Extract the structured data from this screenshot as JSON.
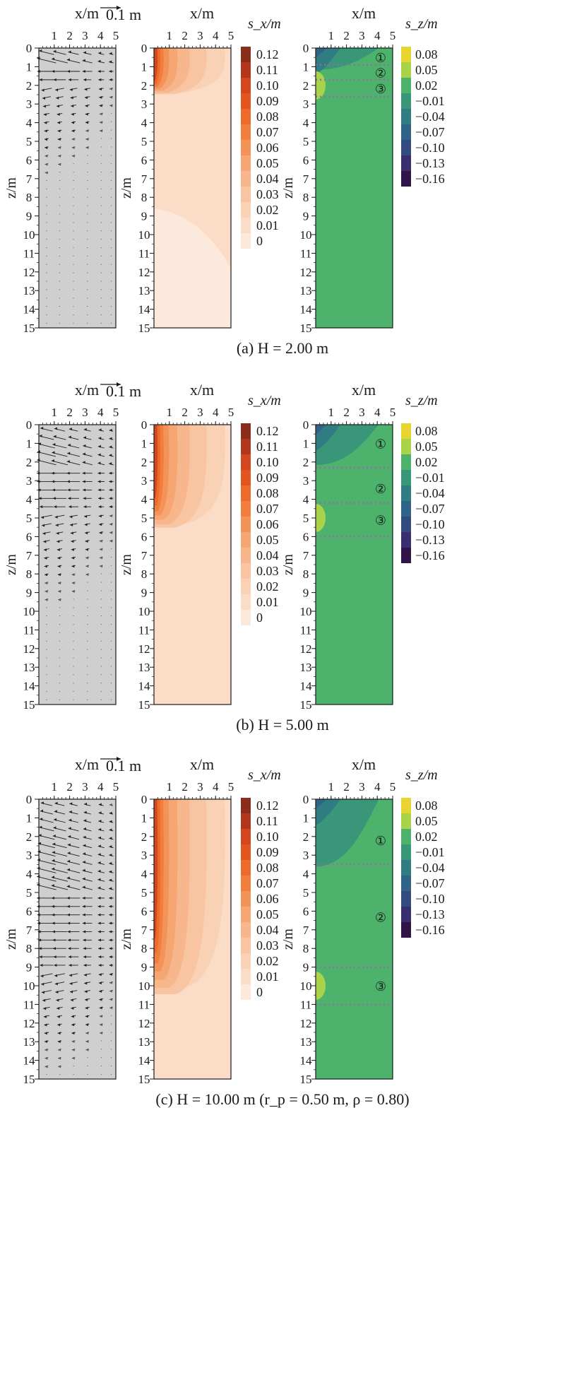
{
  "common": {
    "x_ticks": [
      1,
      2,
      3,
      4,
      5
    ],
    "z_ticks": [
      0,
      1,
      2,
      3,
      4,
      5,
      6,
      7,
      8,
      9,
      10,
      11,
      12,
      13,
      14,
      15
    ],
    "x_label": "x/m",
    "z_label": "z/m",
    "vector_scale_label": "0.1 m",
    "sx_label": "s_x/m",
    "sz_label": "s_z/m",
    "sx_levels": [
      "0.12",
      "0.11",
      "0.10",
      "0.09",
      "0.08",
      "0.07",
      "0.06",
      "0.05",
      "0.04",
      "0.03",
      "0.02",
      "0.01",
      "0"
    ],
    "sz_levels": [
      "0.08",
      "0.05",
      "0.02",
      "−0.01",
      "−0.04",
      "−0.07",
      "−0.10",
      "−0.13",
      "−0.16"
    ],
    "sx_colors": [
      "#8a2d1b",
      "#b2361c",
      "#d4461e",
      "#e2551e",
      "#ee6a2a",
      "#f27e3e",
      "#f49358",
      "#f6a672",
      "#f7b68b",
      "#f8c4a2",
      "#f9d1b5",
      "#fbdcc6",
      "#fde9dc"
    ],
    "sz_colors": [
      "#e8d431",
      "#a9d44a",
      "#4db36c",
      "#3a9678",
      "#2f7c82",
      "#2f6486",
      "#344b82",
      "#392e6e",
      "#311548"
    ],
    "vector_bg": "#cfcfcf"
  },
  "chart_data": [
    {
      "type": "contour",
      "panel_caption": "(a) H = 2.00 m",
      "H": 2.0,
      "sx_zone_depths_m": [
        2.6,
        8.6
      ],
      "sz_layer_boundaries_m": [
        0.9,
        1.7,
        2.6
      ],
      "layer_markers": [
        "①",
        "②",
        "③"
      ],
      "layer_marker_depths_m": [
        0.5,
        1.3,
        2.15
      ]
    },
    {
      "type": "contour",
      "panel_caption": "(b) H = 5.00 m",
      "H": 5.0,
      "sx_zone_depths_m": [
        5.8,
        15
      ],
      "sz_layer_boundaries_m": [
        2.3,
        4.2,
        6.0
      ],
      "layer_markers": [
        "①",
        "②",
        "③"
      ],
      "layer_marker_depths_m": [
        1.0,
        3.4,
        5.1
      ]
    },
    {
      "type": "contour",
      "panel_caption": "(c) H = 10.00 m (r_p = 0.50 m, ρ = 0.80)",
      "H": 10.0,
      "sx_zone_depths_m": [
        11.0,
        15
      ],
      "sz_layer_boundaries_m": [
        3.5,
        9.0,
        11.0
      ],
      "layer_markers": [
        "①",
        "②",
        "③"
      ],
      "layer_marker_depths_m": [
        2.2,
        6.3,
        10.0
      ]
    }
  ]
}
